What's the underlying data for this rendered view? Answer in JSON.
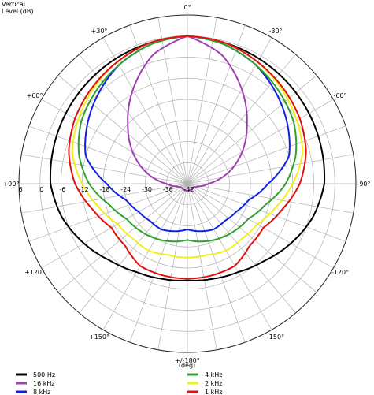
{
  "chart_data": {
    "type": "polar-line",
    "axis_title": "Vertical",
    "radial_label": "Level  (dB)",
    "angle_unit_label": "(deg)",
    "radial_ticks": [
      "6",
      "0",
      "-6",
      "-12",
      "-18",
      "-24",
      "-30",
      "-36",
      "-42"
    ],
    "radial_tick_values": [
      6,
      0,
      -6,
      -12,
      -18,
      -24,
      -30,
      -36,
      -42
    ],
    "rlim": [
      -42,
      6
    ],
    "angle_ticks": [
      {
        "angle": 0,
        "label": "0°"
      },
      {
        "angle": 30,
        "label": "-30°"
      },
      {
        "angle": 60,
        "label": "-60°"
      },
      {
        "angle": 90,
        "label": "-90°"
      },
      {
        "angle": 120,
        "label": "-120°"
      },
      {
        "angle": 150,
        "label": "-150°"
      },
      {
        "angle": 180,
        "label": "+/-180°"
      },
      {
        "angle": 210,
        "label": "+150°"
      },
      {
        "angle": 240,
        "label": "+120°"
      },
      {
        "angle": 270,
        "label": "+90°"
      },
      {
        "angle": 300,
        "label": "+60°"
      },
      {
        "angle": 330,
        "label": "+30°"
      }
    ],
    "angle_grid_step": 10,
    "grid": true,
    "legend_position": "bottom",
    "series": [
      {
        "name": "500 Hz",
        "color": "#000000",
        "angles": [
          0,
          15,
          30,
          45,
          60,
          75,
          90,
          105,
          120,
          135,
          150,
          165,
          180
        ],
        "values": [
          0,
          -0.5,
          -1,
          -1.5,
          -2,
          -2.5,
          -3,
          -5,
          -8,
          -11,
          -13,
          -14,
          -14.5
        ]
      },
      {
        "name": "16 kHz",
        "color": "#a040b0",
        "angles": [
          0,
          15,
          30,
          45,
          60,
          75,
          90,
          105,
          120,
          135,
          150,
          165,
          180
        ],
        "values": [
          0,
          -4,
          -11,
          -18,
          -24,
          -30,
          -36,
          -39,
          -40,
          -40,
          -40,
          -40,
          -40
        ]
      },
      {
        "name": "8 kHz",
        "color": "#1020e0",
        "angles": [
          0,
          15,
          30,
          45,
          60,
          75,
          90,
          105,
          120,
          135,
          150,
          165,
          180
        ],
        "values": [
          0,
          -1,
          -3,
          -6,
          -9,
          -12,
          -19,
          -24,
          -26,
          -27,
          -27,
          -28,
          -29
        ]
      },
      {
        "name": "4 kHz",
        "color": "#30a030",
        "angles": [
          0,
          15,
          30,
          45,
          60,
          75,
          90,
          105,
          120,
          135,
          150,
          165,
          180
        ],
        "values": [
          0,
          -1,
          -3,
          -5,
          -7,
          -10,
          -14,
          -19,
          -22,
          -23,
          -24,
          -25,
          -26
        ]
      },
      {
        "name": "2 kHz",
        "color": "#f0f020",
        "angles": [
          0,
          15,
          30,
          45,
          60,
          75,
          90,
          105,
          120,
          135,
          150,
          165,
          180
        ],
        "values": [
          0,
          -0.5,
          -2,
          -4,
          -6,
          -8,
          -12,
          -16,
          -19,
          -20,
          -20,
          -21,
          -21
        ]
      },
      {
        "name": "1 kHz",
        "color": "#e01010",
        "angles": [
          0,
          15,
          30,
          45,
          60,
          75,
          90,
          105,
          120,
          135,
          150,
          165,
          180
        ],
        "values": [
          0,
          -0.5,
          -2,
          -3.5,
          -5,
          -7,
          -10,
          -14,
          -17,
          -17,
          -15,
          -15,
          -15
        ]
      }
    ]
  }
}
